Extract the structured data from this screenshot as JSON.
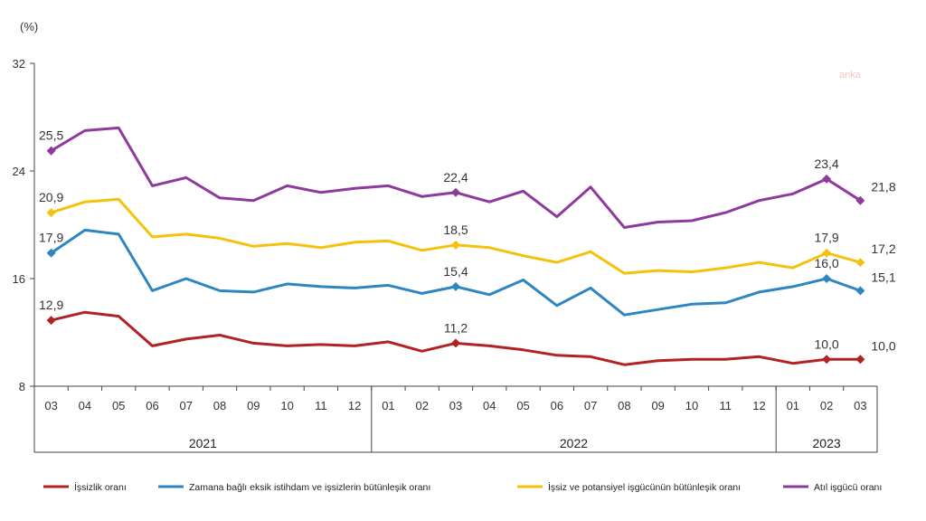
{
  "chart_data": {
    "type": "line",
    "unit_label": "(%)",
    "watermark": "anka",
    "ylim": [
      8,
      32
    ],
    "yticks": [
      8,
      16,
      24,
      32
    ],
    "x": [
      "03",
      "04",
      "05",
      "06",
      "07",
      "08",
      "09",
      "10",
      "11",
      "12",
      "01",
      "02",
      "03",
      "04",
      "05",
      "06",
      "07",
      "08",
      "09",
      "10",
      "11",
      "12",
      "01",
      "02",
      "03"
    ],
    "year_groups": [
      {
        "label": "2021",
        "start": 0,
        "end": 9
      },
      {
        "label": "2022",
        "start": 10,
        "end": 21
      },
      {
        "label": "2023",
        "start": 22,
        "end": 24
      }
    ],
    "series": [
      {
        "name": "İşsizlik oranı",
        "color": "#b22222",
        "values": [
          12.9,
          13.5,
          13.2,
          11.0,
          11.5,
          11.8,
          11.2,
          11.0,
          11.1,
          11.0,
          11.3,
          10.6,
          11.2,
          11.0,
          10.7,
          10.3,
          10.2,
          9.6,
          9.9,
          10.0,
          10.0,
          10.2,
          9.7,
          10.0,
          10.0
        ],
        "labels": [
          {
            "i": 0,
            "text": "12,9"
          },
          {
            "i": 12,
            "text": "11,2"
          },
          {
            "i": 23,
            "text": "10,0"
          },
          {
            "i": 24,
            "text": "10,0"
          }
        ]
      },
      {
        "name": "Zamana bağlı eksik istihdam ve işsizlerin bütünleşik oranı",
        "color": "#2e86c1",
        "values": [
          17.9,
          19.6,
          19.3,
          15.1,
          16.0,
          15.1,
          15.0,
          15.6,
          15.4,
          15.3,
          15.5,
          14.9,
          15.4,
          14.8,
          15.9,
          14.0,
          15.3,
          13.3,
          13.7,
          14.1,
          14.2,
          15.0,
          15.4,
          16.0,
          15.1
        ],
        "labels": [
          {
            "i": 0,
            "text": "17,9"
          },
          {
            "i": 12,
            "text": "15,4"
          },
          {
            "i": 23,
            "text": "16,0"
          },
          {
            "i": 24,
            "text": "15,1"
          }
        ]
      },
      {
        "name": "İşsiz ve potansiyel işgücünün bütünleşik oranı",
        "color": "#f4c20d",
        "values": [
          20.9,
          21.7,
          21.9,
          19.1,
          19.3,
          19.0,
          18.4,
          18.6,
          18.3,
          18.7,
          18.8,
          18.1,
          18.5,
          18.3,
          17.7,
          17.2,
          18.0,
          16.4,
          16.6,
          16.5,
          16.8,
          17.2,
          16.8,
          17.9,
          17.2
        ],
        "labels": [
          {
            "i": 0,
            "text": "20,9"
          },
          {
            "i": 12,
            "text": "18,5"
          },
          {
            "i": 23,
            "text": "17,9"
          },
          {
            "i": 24,
            "text": "17,2"
          }
        ]
      },
      {
        "name": "Atıl işgücü oranı",
        "color": "#8e3a9d",
        "values": [
          25.5,
          27.0,
          27.2,
          22.9,
          23.5,
          22.0,
          21.8,
          22.9,
          22.4,
          22.7,
          22.9,
          22.1,
          22.4,
          21.7,
          22.5,
          20.6,
          22.8,
          19.8,
          20.2,
          20.3,
          20.9,
          21.8,
          22.3,
          23.4,
          21.8
        ],
        "labels": [
          {
            "i": 0,
            "text": "25,5"
          },
          {
            "i": 12,
            "text": "22,4"
          },
          {
            "i": 23,
            "text": "23,4"
          },
          {
            "i": 24,
            "text": "21,8"
          }
        ]
      }
    ]
  }
}
